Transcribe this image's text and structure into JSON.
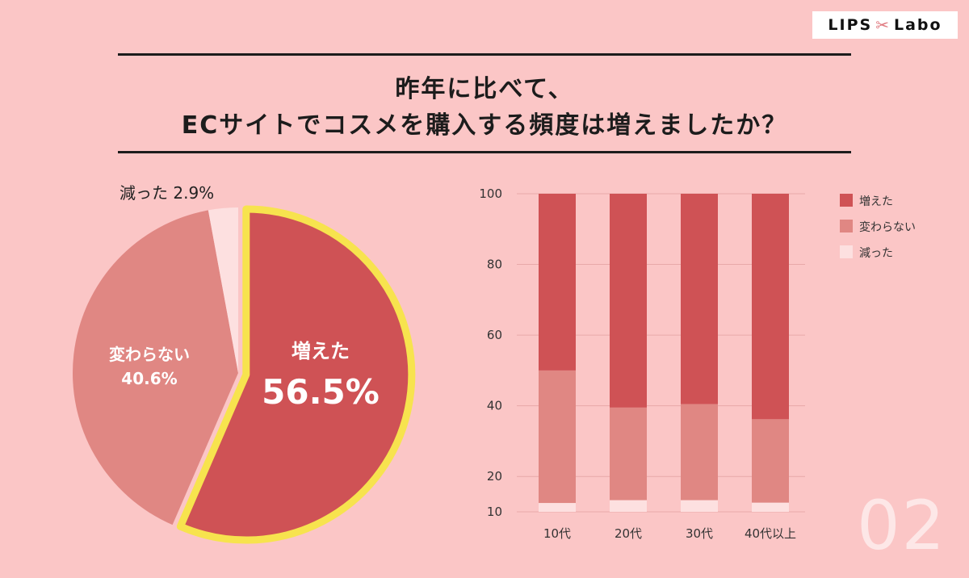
{
  "brand": {
    "left": "LIPS",
    "right": "Labo",
    "mark_icon": "ribbon-icon"
  },
  "title": {
    "line1": "昨年に比べて、",
    "line2": "ECサイトでコスメを購入する頻度は増えましたか？"
  },
  "page_number": "02",
  "colors": {
    "background": "#fbc6c6",
    "increased": "#cf5255",
    "unchanged": "#e08783",
    "decreased": "#fde0e0",
    "highlight": "#f7e34e"
  },
  "chart_data": [
    {
      "type": "pie",
      "slices": [
        {
          "label": "増えた",
          "value": 56.5,
          "display": "56.5%",
          "highlighted": true
        },
        {
          "label": "変わらない",
          "value": 40.6,
          "display": "40.6%"
        },
        {
          "label": "減った",
          "value": 2.9,
          "display": "2.9%"
        }
      ],
      "outside_label": "減った 2.9%"
    },
    {
      "type": "bar",
      "stacked": true,
      "categories": [
        "10代",
        "20代",
        "30代",
        "40代以上"
      ],
      "series": [
        {
          "name": "減った",
          "values": [
            12.5,
            13.3,
            13.3,
            12.6
          ]
        },
        {
          "name": "変わらない",
          "values": [
            37.5,
            26.2,
            27.2,
            23.6
          ]
        },
        {
          "name": "増えた",
          "values": [
            50.0,
            60.5,
            59.5,
            63.8
          ]
        }
      ],
      "yticks": [
        10,
        20,
        40,
        60,
        80,
        100
      ],
      "ylim": [
        10,
        100
      ],
      "legend": [
        "増えた",
        "変わらない",
        "減った"
      ],
      "legend_position": "right",
      "grid": true
    }
  ]
}
